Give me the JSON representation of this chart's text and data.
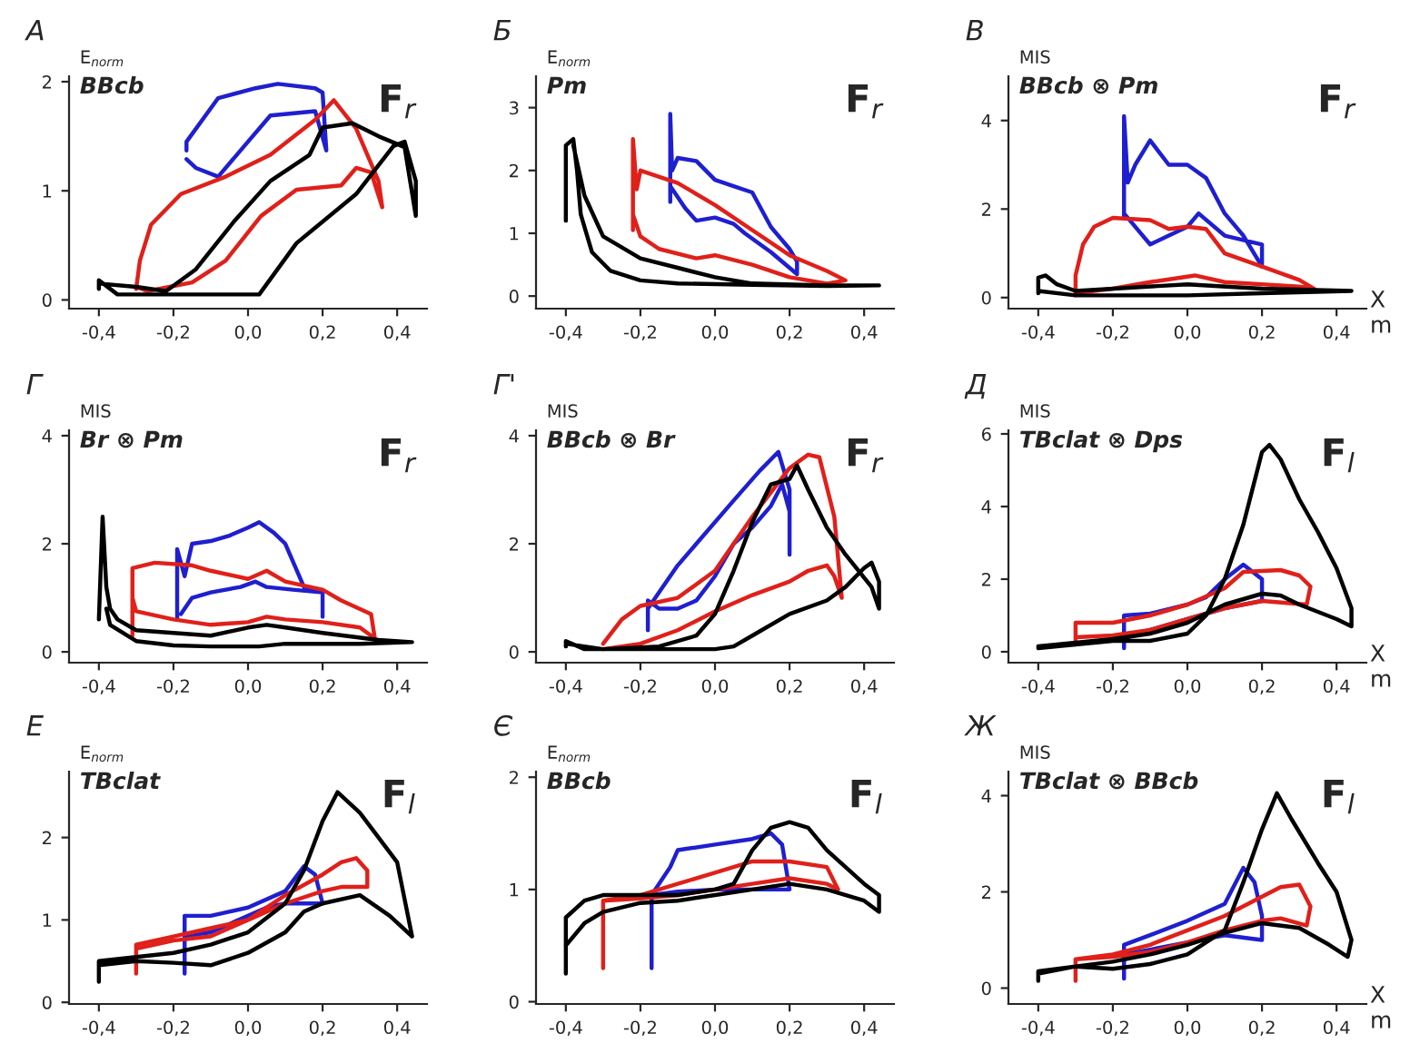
{
  "chart_data": [
    {
      "type": "line",
      "title": "А",
      "ylabel": "E$_{norm}$",
      "subtitle": "BBcb",
      "annotations": [
        "F$_{r}$"
      ],
      "xlim": [
        -0.48,
        0.48
      ],
      "xticks": [
        {
          "value": -0.4,
          "label": "-0,4"
        },
        {
          "value": -0.2,
          "label": "-0,2"
        },
        {
          "value": 0.0,
          "label": "0,0"
        },
        {
          "value": 0.2,
          "label": "0,2"
        },
        {
          "value": 0.4,
          "label": "0,4"
        }
      ],
      "ylim": [
        -0.08,
        2.05
      ],
      "yticks": [
        0,
        1,
        2
      ],
      "grid": false,
      "line_style": "solid",
      "series": [
        {
          "color": "#000000",
          "x": [
            -0.4,
            -0.4,
            -0.35,
            -0.2,
            0.0,
            0.03,
            0.13,
            0.29,
            0.39,
            0.42,
            0.45,
            0.45,
            0.42,
            0.35,
            0.28,
            0.2,
            0.165,
            0.06,
            -0.035,
            -0.14,
            -0.22,
            -0.3,
            -0.4
          ],
          "values": [
            0.1,
            0.18,
            0.05,
            0.05,
            0.05,
            0.05,
            0.52,
            0.97,
            1.41,
            1.45,
            1.09,
            0.77,
            1.4,
            1.5,
            1.62,
            1.58,
            1.33,
            1.09,
            0.73,
            0.28,
            0.08,
            0.12,
            0.15
          ]
        },
        {
          "color": "#e0201a",
          "x": [
            -0.3,
            -0.29,
            -0.26,
            -0.18,
            -0.06,
            0.06,
            0.18,
            0.23,
            0.29,
            0.35,
            0.36,
            0.33,
            0.29,
            0.25,
            0.13,
            0.035,
            -0.06,
            -0.15,
            -0.27,
            -0.3
          ],
          "values": [
            0.1,
            0.36,
            0.69,
            0.97,
            1.13,
            1.33,
            1.65,
            1.83,
            1.57,
            1.09,
            0.85,
            1.17,
            1.21,
            1.05,
            1.01,
            0.77,
            0.36,
            0.16,
            0.08,
            0.12
          ]
        },
        {
          "color": "#1f1fd0",
          "x": [
            -0.165,
            -0.165,
            -0.08,
            0.02,
            0.08,
            0.18,
            0.2,
            0.21,
            0.18,
            0.06,
            -0.01,
            -0.08,
            -0.14,
            -0.165
          ],
          "values": [
            1.37,
            1.45,
            1.85,
            1.94,
            1.98,
            1.94,
            1.9,
            1.37,
            1.73,
            1.69,
            1.41,
            1.13,
            1.21,
            1.29
          ]
        }
      ]
    },
    {
      "type": "line",
      "title": "Б",
      "ylabel": "E$_{norm}$",
      "subtitle": "Pm",
      "annotations": [
        "F$_{r}$"
      ],
      "xlim": [
        -0.48,
        0.48
      ],
      "xticks": [
        {
          "value": -0.4,
          "label": "-0,4"
        },
        {
          "value": -0.2,
          "label": "-0,2"
        },
        {
          "value": 0.0,
          "label": "0,0"
        },
        {
          "value": 0.2,
          "label": "0,2"
        },
        {
          "value": 0.4,
          "label": "0,4"
        }
      ],
      "ylim": [
        -0.2,
        3.5
      ],
      "yticks": [
        0,
        1,
        2,
        3
      ],
      "grid": false,
      "line_style": "solid",
      "series": [
        {
          "color": "#000000",
          "x": [
            -0.4,
            -0.4,
            -0.38,
            -0.37,
            -0.36,
            -0.33,
            -0.28,
            -0.2,
            -0.1,
            0.1,
            0.3,
            0.44,
            0.3,
            0.1,
            0.0,
            -0.1,
            -0.2,
            -0.3,
            -0.35,
            -0.38
          ],
          "values": [
            1.2,
            2.4,
            2.5,
            2.0,
            1.3,
            0.7,
            0.4,
            0.25,
            0.2,
            0.18,
            0.16,
            0.17,
            0.17,
            0.2,
            0.3,
            0.45,
            0.6,
            0.95,
            1.6,
            2.4
          ]
        },
        {
          "color": "#e0201a",
          "x": [
            -0.22,
            -0.22,
            -0.21,
            -0.2,
            -0.1,
            0.0,
            0.1,
            0.2,
            0.3,
            0.35,
            0.3,
            0.2,
            0.1,
            0.0,
            -0.05,
            -0.15,
            -0.2,
            -0.22
          ],
          "values": [
            1.05,
            2.5,
            1.7,
            2.0,
            1.8,
            1.45,
            1.05,
            0.65,
            0.4,
            0.25,
            0.2,
            0.3,
            0.5,
            0.65,
            0.6,
            0.75,
            0.95,
            1.3
          ]
        },
        {
          "color": "#1f1fd0",
          "x": [
            -0.12,
            -0.12,
            -0.115,
            -0.1,
            -0.05,
            0.0,
            0.05,
            0.1,
            0.15,
            0.2,
            0.22,
            0.22,
            0.15,
            0.08,
            0.05,
            0.0,
            -0.05,
            -0.08,
            -0.12
          ],
          "values": [
            1.5,
            2.9,
            2.0,
            2.2,
            2.15,
            1.85,
            1.75,
            1.65,
            1.1,
            0.75,
            0.55,
            0.35,
            0.7,
            1.0,
            1.15,
            1.25,
            1.2,
            1.4,
            1.75
          ]
        }
      ]
    },
    {
      "type": "line",
      "title": "В",
      "ylabel": "MIS",
      "subtitle": "BBcb ⊗ Pm",
      "annotations": [
        "F$_{r}$"
      ],
      "xlabel": "X\nm",
      "xlim": [
        -0.48,
        0.48
      ],
      "xticks": [
        {
          "value": -0.4,
          "label": "-0,4"
        },
        {
          "value": -0.2,
          "label": "-0,2"
        },
        {
          "value": 0.0,
          "label": "0,0"
        },
        {
          "value": 0.2,
          "label": "0,2"
        },
        {
          "value": 0.4,
          "label": "0,4"
        }
      ],
      "ylim": [
        -0.25,
        5.0
      ],
      "yticks": [
        0,
        2,
        4
      ],
      "grid": false,
      "line_style": "solid",
      "series": [
        {
          "color": "#000000",
          "x": [
            -0.4,
            -0.4,
            -0.38,
            -0.35,
            -0.3,
            0.0,
            0.2,
            0.44,
            0.2,
            0.0,
            -0.3,
            -0.4
          ],
          "values": [
            0.1,
            0.45,
            0.5,
            0.3,
            0.15,
            0.3,
            0.2,
            0.15,
            0.1,
            0.05,
            0.05,
            0.15
          ]
        },
        {
          "color": "#e0201a",
          "x": [
            -0.3,
            -0.3,
            -0.28,
            -0.25,
            -0.2,
            -0.1,
            -0.05,
            0.0,
            0.05,
            0.1,
            0.2,
            0.3,
            0.34,
            0.3,
            0.1,
            0.02,
            -0.1,
            -0.2,
            -0.3
          ],
          "values": [
            0.05,
            0.5,
            1.2,
            1.6,
            1.8,
            1.75,
            1.55,
            1.6,
            1.55,
            1.0,
            0.7,
            0.4,
            0.2,
            0.25,
            0.35,
            0.5,
            0.35,
            0.2,
            0.1
          ]
        },
        {
          "color": "#1f1fd0",
          "x": [
            -0.17,
            -0.17,
            -0.16,
            -0.14,
            -0.1,
            -0.05,
            0.0,
            0.05,
            0.1,
            0.15,
            0.2,
            0.2,
            0.1,
            0.03,
            0.0,
            -0.05,
            -0.1,
            -0.15,
            -0.17
          ],
          "values": [
            1.8,
            4.1,
            2.6,
            3.0,
            3.55,
            3.0,
            3.0,
            2.7,
            1.9,
            1.4,
            0.7,
            1.2,
            1.4,
            1.9,
            1.6,
            1.4,
            1.2,
            1.7,
            1.9
          ]
        }
      ]
    },
    {
      "type": "line",
      "title": "Г",
      "ylabel": "MIS",
      "subtitle": "Br ⊗ Pm",
      "annotations": [
        "F$_{r}$"
      ],
      "xlim": [
        -0.48,
        0.48
      ],
      "xticks": [
        {
          "value": -0.4,
          "label": "-0,4"
        },
        {
          "value": -0.2,
          "label": "-0,2"
        },
        {
          "value": 0.0,
          "label": "0,0"
        },
        {
          "value": 0.2,
          "label": "0,2"
        },
        {
          "value": 0.4,
          "label": "0,4"
        }
      ],
      "ylim": [
        -0.2,
        4.1
      ],
      "yticks": [
        0,
        2,
        4
      ],
      "grid": false,
      "line_style": "solid",
      "series": [
        {
          "color": "#000000",
          "x": [
            -0.4,
            -0.39,
            -0.38,
            -0.37,
            -0.35,
            -0.3,
            -0.2,
            -0.1,
            0.0,
            0.05,
            0.1,
            0.2,
            0.35,
            0.44,
            0.3,
            0.1,
            0.03,
            -0.1,
            -0.2,
            -0.3,
            -0.37,
            -0.38
          ],
          "values": [
            0.6,
            2.5,
            1.2,
            0.8,
            0.6,
            0.4,
            0.35,
            0.3,
            0.45,
            0.5,
            0.45,
            0.35,
            0.22,
            0.18,
            0.15,
            0.15,
            0.1,
            0.1,
            0.12,
            0.2,
            0.5,
            0.8
          ]
        },
        {
          "color": "#e0201a",
          "x": [
            -0.31,
            -0.31,
            -0.25,
            -0.15,
            -0.1,
            0.0,
            0.05,
            0.1,
            0.2,
            0.25,
            0.33,
            0.34,
            0.3,
            0.2,
            0.1,
            0.05,
            0.0,
            -0.1,
            -0.2,
            -0.3,
            -0.31
          ],
          "values": [
            0.3,
            1.55,
            1.65,
            1.6,
            1.5,
            1.35,
            1.5,
            1.3,
            1.15,
            0.95,
            0.7,
            0.25,
            0.45,
            0.55,
            0.6,
            0.65,
            0.55,
            0.5,
            0.6,
            0.75,
            1.0
          ]
        },
        {
          "color": "#1f1fd0",
          "x": [
            -0.19,
            -0.19,
            -0.17,
            -0.15,
            -0.1,
            -0.05,
            0.0,
            0.03,
            0.07,
            0.1,
            0.15,
            0.2,
            0.2,
            0.2,
            0.12,
            0.05,
            0.02,
            -0.02,
            -0.1,
            -0.15,
            -0.18
          ],
          "values": [
            0.6,
            1.9,
            1.4,
            2.0,
            2.05,
            2.15,
            2.3,
            2.4,
            2.2,
            2.0,
            1.2,
            1.1,
            0.65,
            1.1,
            1.15,
            1.2,
            1.3,
            1.2,
            1.1,
            1.0,
            0.7
          ]
        }
      ]
    },
    {
      "type": "line",
      "title": "Г'",
      "ylabel": "MIS",
      "subtitle": "BBcb ⊗ Br",
      "annotations": [
        "F$_{r}$"
      ],
      "xlim": [
        -0.48,
        0.48
      ],
      "xticks": [
        {
          "value": -0.4,
          "label": "-0,4"
        },
        {
          "value": -0.2,
          "label": "-0,2"
        },
        {
          "value": 0.0,
          "label": "0,0"
        },
        {
          "value": 0.2,
          "label": "0,2"
        },
        {
          "value": 0.4,
          "label": "0,4"
        }
      ],
      "ylim": [
        -0.2,
        4.1
      ],
      "yticks": [
        0,
        2,
        4
      ],
      "grid": false,
      "line_style": "solid",
      "series": [
        {
          "color": "#000000",
          "x": [
            -0.4,
            -0.4,
            -0.35,
            -0.2,
            0.0,
            0.05,
            0.1,
            0.2,
            0.3,
            0.35,
            0.4,
            0.42,
            0.44,
            0.44,
            0.42,
            0.35,
            0.3,
            0.25,
            0.22,
            0.2,
            0.15,
            0.1,
            0.05,
            0.0,
            -0.05,
            -0.15,
            -0.3,
            -0.4
          ],
          "values": [
            0.1,
            0.2,
            0.05,
            0.05,
            0.05,
            0.1,
            0.3,
            0.7,
            0.95,
            1.2,
            1.55,
            1.65,
            1.3,
            0.8,
            1.2,
            1.8,
            2.3,
            3.0,
            3.45,
            3.2,
            3.1,
            2.4,
            1.5,
            0.7,
            0.3,
            0.1,
            0.05,
            0.15
          ]
        },
        {
          "color": "#e0201a",
          "x": [
            -0.3,
            -0.25,
            -0.2,
            -0.1,
            0.0,
            0.1,
            0.2,
            0.25,
            0.28,
            0.32,
            0.34,
            0.32,
            0.3,
            0.25,
            0.2,
            0.1,
            0.0,
            -0.1,
            -0.2,
            -0.3
          ],
          "values": [
            0.15,
            0.6,
            0.85,
            1.0,
            1.5,
            2.5,
            3.4,
            3.65,
            3.6,
            2.5,
            1.0,
            1.4,
            1.6,
            1.5,
            1.3,
            1.05,
            0.75,
            0.4,
            0.15,
            0.05
          ]
        },
        {
          "color": "#1f1fd0",
          "x": [
            -0.18,
            -0.18,
            -0.15,
            -0.1,
            -0.05,
            0.0,
            0.05,
            0.1,
            0.15,
            0.18,
            0.2,
            0.2,
            0.2,
            0.17,
            0.12,
            0.05,
            -0.05,
            -0.1,
            -0.15,
            -0.18
          ],
          "values": [
            0.4,
            0.95,
            0.8,
            0.8,
            0.95,
            1.4,
            2.0,
            2.3,
            2.7,
            3.1,
            2.6,
            1.8,
            3.0,
            3.7,
            3.35,
            2.8,
            2.0,
            1.6,
            1.1,
            0.8
          ]
        }
      ]
    },
    {
      "type": "line",
      "title": "Д",
      "ylabel": "MIS",
      "subtitle": "TBclat ⊗ Dps",
      "annotations": [
        "F$_{l}$"
      ],
      "xlabel": "X\nm",
      "xlim": [
        -0.48,
        0.48
      ],
      "xticks": [
        {
          "value": -0.4,
          "label": "-0,4"
        },
        {
          "value": -0.2,
          "label": "-0,2"
        },
        {
          "value": 0.0,
          "label": "0,0"
        },
        {
          "value": 0.2,
          "label": "0,2"
        },
        {
          "value": 0.4,
          "label": "0,4"
        }
      ],
      "ylim": [
        -0.3,
        6.1
      ],
      "yticks": [
        0,
        2,
        4,
        6
      ],
      "grid": false,
      "line_style": "solid",
      "series": [
        {
          "color": "#000000",
          "x": [
            -0.4,
            -0.3,
            -0.2,
            -0.1,
            0.0,
            0.05,
            0.1,
            0.15,
            0.2,
            0.22,
            0.25,
            0.3,
            0.35,
            0.4,
            0.44,
            0.44,
            0.4,
            0.3,
            0.25,
            0.2,
            0.1,
            0.0,
            -0.1,
            -0.2,
            -0.3,
            -0.4
          ],
          "values": [
            0.1,
            0.2,
            0.3,
            0.3,
            0.5,
            1.0,
            2.0,
            3.5,
            5.5,
            5.7,
            5.3,
            4.2,
            3.3,
            2.3,
            1.2,
            0.7,
            0.9,
            1.3,
            1.55,
            1.6,
            1.3,
            0.8,
            0.5,
            0.35,
            0.25,
            0.15
          ]
        },
        {
          "color": "#e0201a",
          "x": [
            -0.3,
            -0.3,
            -0.2,
            -0.1,
            0.0,
            0.1,
            0.15,
            0.25,
            0.3,
            0.33,
            0.32,
            0.2,
            0.1,
            0.0,
            -0.1,
            -0.2,
            -0.3
          ],
          "values": [
            0.2,
            0.8,
            0.8,
            1.0,
            1.3,
            1.75,
            2.2,
            2.25,
            2.1,
            1.8,
            1.3,
            1.4,
            1.2,
            0.9,
            0.6,
            0.45,
            0.4
          ]
        },
        {
          "color": "#1f1fd0",
          "x": [
            -0.17,
            -0.17,
            -0.1,
            0.0,
            0.05,
            0.1,
            0.15,
            0.2,
            0.2,
            0.1,
            0.0,
            -0.1,
            -0.17
          ],
          "values": [
            0.1,
            1.0,
            1.05,
            1.3,
            1.5,
            2.0,
            2.4,
            2.0,
            1.4,
            1.2,
            0.9,
            0.6,
            0.4
          ]
        }
      ]
    },
    {
      "type": "line",
      "title": "Е",
      "ylabel": "E$_{norm}$",
      "subtitle": "TBclat",
      "annotations": [
        "F$_{l}$"
      ],
      "xlim": [
        -0.48,
        0.48
      ],
      "xticks": [
        {
          "value": -0.4,
          "label": "-0,4"
        },
        {
          "value": -0.2,
          "label": "-0,2"
        },
        {
          "value": 0.0,
          "label": "0,0"
        },
        {
          "value": 0.2,
          "label": "0,2"
        },
        {
          "value": 0.4,
          "label": "0,4"
        }
      ],
      "ylim": [
        -0.02,
        2.8
      ],
      "yticks": [
        0,
        1,
        2
      ],
      "grid": false,
      "line_style": "solid",
      "series": [
        {
          "color": "#000000",
          "x": [
            -0.4,
            -0.4,
            -0.3,
            -0.2,
            -0.1,
            0.0,
            0.1,
            0.15,
            0.2,
            0.24,
            0.3,
            0.35,
            0.4,
            0.44,
            0.38,
            0.3,
            0.2,
            0.15,
            0.1,
            0.0,
            -0.1,
            -0.2,
            -0.3,
            -0.4
          ],
          "values": [
            0.25,
            0.5,
            0.55,
            0.6,
            0.7,
            0.85,
            1.2,
            1.6,
            2.2,
            2.55,
            2.3,
            2.0,
            1.7,
            0.8,
            1.05,
            1.3,
            1.2,
            1.1,
            0.85,
            0.6,
            0.45,
            0.48,
            0.5,
            0.45
          ]
        },
        {
          "color": "#e0201a",
          "x": [
            -0.3,
            -0.3,
            -0.2,
            -0.1,
            0.0,
            0.1,
            0.2,
            0.25,
            0.29,
            0.32,
            0.32,
            0.25,
            0.2,
            0.1,
            0.0,
            -0.1,
            -0.2,
            -0.3
          ],
          "values": [
            0.35,
            0.7,
            0.8,
            0.9,
            1.0,
            1.3,
            1.55,
            1.7,
            1.75,
            1.6,
            1.4,
            1.4,
            1.35,
            1.2,
            1.0,
            0.8,
            0.75,
            0.65
          ]
        },
        {
          "color": "#1f1fd0",
          "x": [
            -0.17,
            -0.17,
            -0.1,
            0.0,
            0.1,
            0.15,
            0.18,
            0.2,
            0.1,
            0.05,
            -0.05,
            -0.1,
            -0.17
          ],
          "values": [
            0.35,
            1.05,
            1.05,
            1.15,
            1.35,
            1.65,
            1.55,
            1.2,
            1.2,
            1.15,
            0.95,
            0.85,
            0.8
          ]
        }
      ]
    },
    {
      "type": "line",
      "title": "Є",
      "ylabel": "E$_{norm}$",
      "subtitle": "BBcb",
      "annotations": [
        "F$_{l}$"
      ],
      "xlim": [
        -0.48,
        0.48
      ],
      "xticks": [
        {
          "value": -0.4,
          "label": "-0,4"
        },
        {
          "value": -0.2,
          "label": "-0,2"
        },
        {
          "value": 0.0,
          "label": "0,0"
        },
        {
          "value": 0.2,
          "label": "0,2"
        },
        {
          "value": 0.4,
          "label": "0,4"
        }
      ],
      "ylim": [
        -0.02,
        2.05
      ],
      "yticks": [
        0,
        1,
        2
      ],
      "grid": false,
      "line_style": "solid",
      "series": [
        {
          "color": "#000000",
          "x": [
            -0.4,
            -0.4,
            -0.35,
            -0.3,
            -0.2,
            -0.1,
            0.0,
            0.05,
            0.1,
            0.15,
            0.2,
            0.25,
            0.3,
            0.35,
            0.4,
            0.44,
            0.44,
            0.4,
            0.3,
            0.2,
            0.1,
            0.0,
            -0.1,
            -0.2,
            -0.3,
            -0.35,
            -0.4
          ],
          "values": [
            0.25,
            0.75,
            0.9,
            0.95,
            0.95,
            0.95,
            1.0,
            1.05,
            1.35,
            1.55,
            1.6,
            1.55,
            1.35,
            1.2,
            1.05,
            0.95,
            0.8,
            0.9,
            1.0,
            1.05,
            1.0,
            0.95,
            0.9,
            0.88,
            0.8,
            0.7,
            0.5
          ]
        },
        {
          "color": "#e0201a",
          "x": [
            -0.3,
            -0.3,
            -0.2,
            -0.1,
            0.0,
            0.1,
            0.2,
            0.3,
            0.33,
            0.3,
            0.2,
            0.1,
            0.0,
            -0.1,
            -0.2,
            -0.3
          ],
          "values": [
            0.3,
            0.9,
            0.95,
            1.05,
            1.15,
            1.25,
            1.25,
            1.2,
            1.0,
            1.05,
            1.1,
            1.05,
            1.0,
            0.95,
            0.92,
            0.9
          ]
        },
        {
          "color": "#1f1fd0",
          "x": [
            -0.17,
            -0.17,
            -0.12,
            -0.1,
            0.0,
            0.1,
            0.15,
            0.18,
            0.2,
            0.1,
            0.0,
            -0.1,
            -0.17
          ],
          "values": [
            0.3,
            0.95,
            1.2,
            1.35,
            1.4,
            1.45,
            1.5,
            1.4,
            1.0,
            1.0,
            1.0,
            0.98,
            0.95
          ]
        }
      ]
    },
    {
      "type": "line",
      "title": "Ж",
      "ylabel": "MIS",
      "subtitle": "TBclat ⊗ BBcb",
      "annotations": [
        "F$_{l}$"
      ],
      "xlabel": "X\nm",
      "xlim": [
        -0.48,
        0.48
      ],
      "xticks": [
        {
          "value": -0.4,
          "label": "-0,4"
        },
        {
          "value": -0.2,
          "label": "-0,2"
        },
        {
          "value": 0.0,
          "label": "0,0"
        },
        {
          "value": 0.2,
          "label": "0,2"
        },
        {
          "value": 0.4,
          "label": "0,4"
        }
      ],
      "ylim": [
        -0.33,
        4.5
      ],
      "yticks": [
        0,
        2,
        4
      ],
      "grid": false,
      "line_style": "solid",
      "series": [
        {
          "color": "#000000",
          "x": [
            -0.4,
            -0.4,
            -0.3,
            -0.2,
            -0.1,
            0.0,
            0.1,
            0.15,
            0.2,
            0.24,
            0.28,
            0.35,
            0.4,
            0.44,
            0.43,
            0.38,
            0.3,
            0.2,
            0.1,
            0.0,
            -0.1,
            -0.2,
            -0.3,
            -0.4
          ],
          "values": [
            0.15,
            0.35,
            0.45,
            0.4,
            0.5,
            0.7,
            1.2,
            2.2,
            3.3,
            4.05,
            3.5,
            2.6,
            2.0,
            1.0,
            0.65,
            0.9,
            1.25,
            1.35,
            1.15,
            0.9,
            0.7,
            0.55,
            0.45,
            0.3
          ]
        },
        {
          "color": "#e0201a",
          "x": [
            -0.3,
            -0.3,
            -0.2,
            -0.1,
            0.0,
            0.1,
            0.2,
            0.25,
            0.3,
            0.33,
            0.32,
            0.25,
            0.2,
            0.1,
            0.0,
            -0.1,
            -0.2,
            -0.3
          ],
          "values": [
            0.15,
            0.6,
            0.7,
            0.9,
            1.2,
            1.5,
            1.9,
            2.1,
            2.15,
            1.7,
            1.3,
            1.45,
            1.4,
            1.2,
            0.95,
            0.75,
            0.65,
            0.6
          ]
        },
        {
          "color": "#1f1fd0",
          "x": [
            -0.17,
            -0.17,
            -0.1,
            0.0,
            0.1,
            0.15,
            0.18,
            0.2,
            0.2,
            0.1,
            0.0,
            -0.1,
            -0.17
          ],
          "values": [
            0.2,
            0.9,
            1.1,
            1.4,
            1.75,
            2.5,
            2.2,
            1.5,
            1.0,
            1.1,
            0.95,
            0.8,
            0.7
          ]
        }
      ]
    }
  ]
}
